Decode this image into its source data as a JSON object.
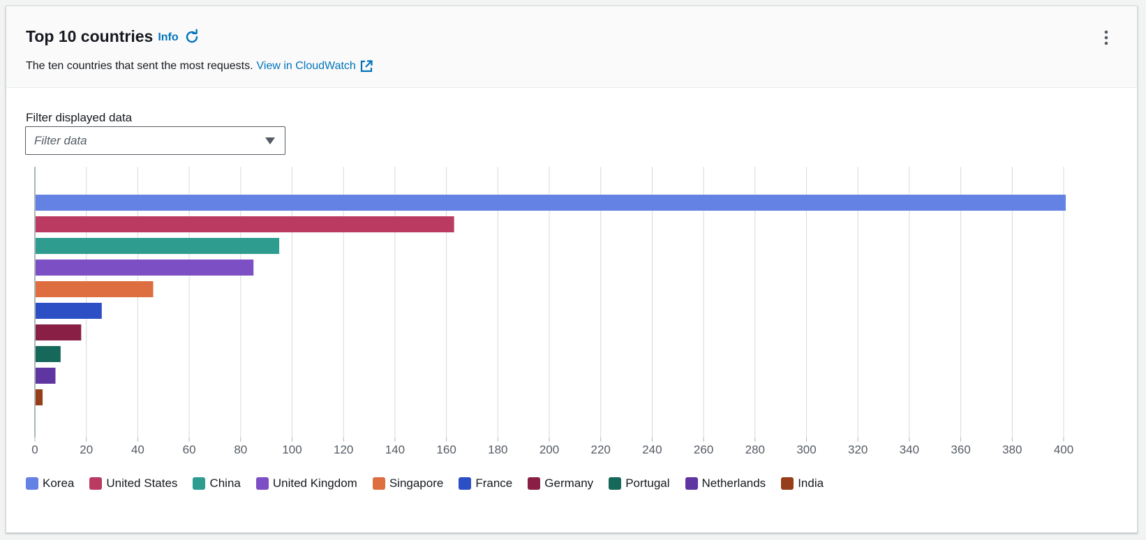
{
  "header": {
    "title": "Top 10 countries",
    "info_label": "Info",
    "description": "The ten countries that sent the most requests.",
    "cloudwatch_link": "View in CloudWatch"
  },
  "filter": {
    "label": "Filter displayed data",
    "placeholder": "Filter data"
  },
  "colors": {
    "link": "#0073bb",
    "gridline": "#d5dbdb",
    "axis": "#aab7b8"
  },
  "chart_data": {
    "type": "bar",
    "orientation": "horizontal",
    "title": "Top 10 countries",
    "xlabel": "",
    "ylabel": "",
    "xlim": [
      0,
      400
    ],
    "x_ticks": [
      0,
      20,
      40,
      60,
      80,
      100,
      120,
      140,
      160,
      180,
      200,
      220,
      240,
      260,
      280,
      300,
      320,
      340,
      360,
      380,
      400
    ],
    "grid": true,
    "legend_position": "bottom-left",
    "categories": [
      "Korea",
      "United States",
      "China",
      "United Kingdom",
      "Singapore",
      "France",
      "Germany",
      "Portugal",
      "Netherlands",
      "India"
    ],
    "values": [
      401,
      163,
      95,
      85,
      46,
      26,
      18,
      10,
      8,
      3
    ],
    "colors": [
      "#6481e4",
      "#bb3a61",
      "#2e9c8f",
      "#7c4fc5",
      "#de6d3f",
      "#2d4fc6",
      "#8a1f46",
      "#15685a",
      "#5e35a1",
      "#963d1a"
    ]
  }
}
